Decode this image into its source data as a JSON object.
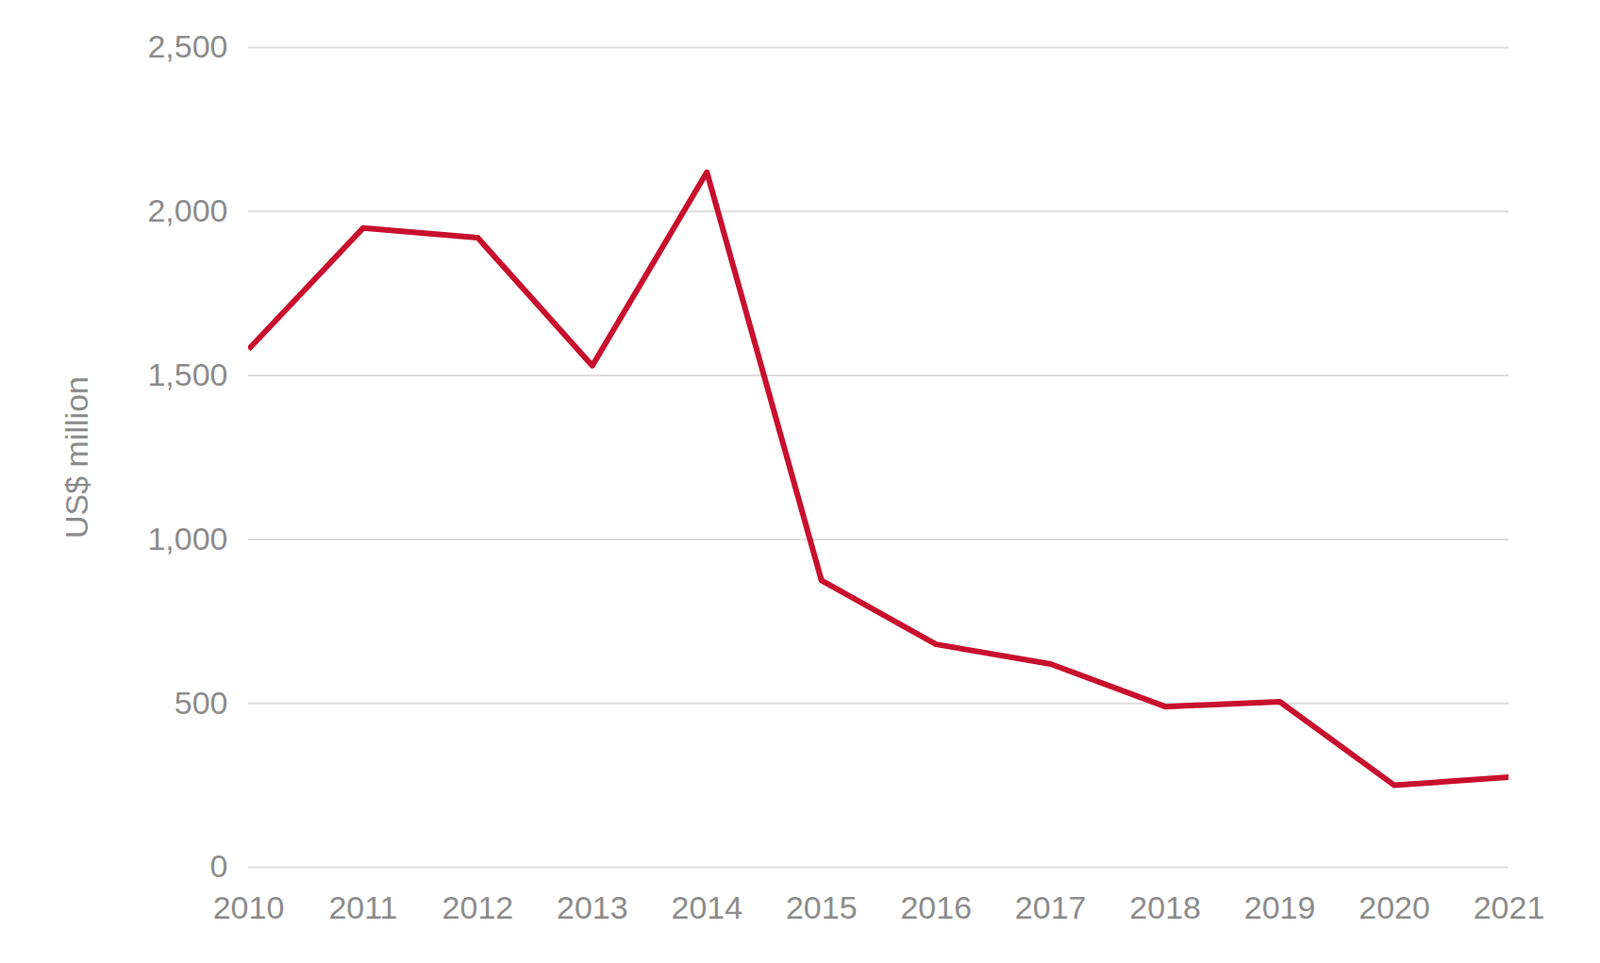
{
  "chart_data": {
    "type": "line",
    "y_label": "US$ million",
    "x": [
      2010,
      2011,
      2012,
      2013,
      2014,
      2015,
      2016,
      2017,
      2018,
      2019,
      2020,
      2021
    ],
    "values": [
      1580,
      1950,
      1920,
      1530,
      2120,
      875,
      680,
      620,
      490,
      505,
      250,
      275
    ],
    "color": "#c8102e",
    "xlim": [
      2010,
      2021
    ],
    "xticks": [
      2010,
      2011,
      2012,
      2013,
      2014,
      2015,
      2016,
      2017,
      2018,
      2019,
      2020,
      2021
    ],
    "ylim": [
      0,
      2500
    ],
    "yticks": [
      0,
      500,
      {
        "value": 1000,
        "label": "1,000"
      },
      {
        "value": 1500,
        "label": "1,500"
      },
      {
        "value": 2000,
        "label": "2,000"
      },
      {
        "value": 2500,
        "label": "2,500"
      }
    ],
    "grid": true
  }
}
